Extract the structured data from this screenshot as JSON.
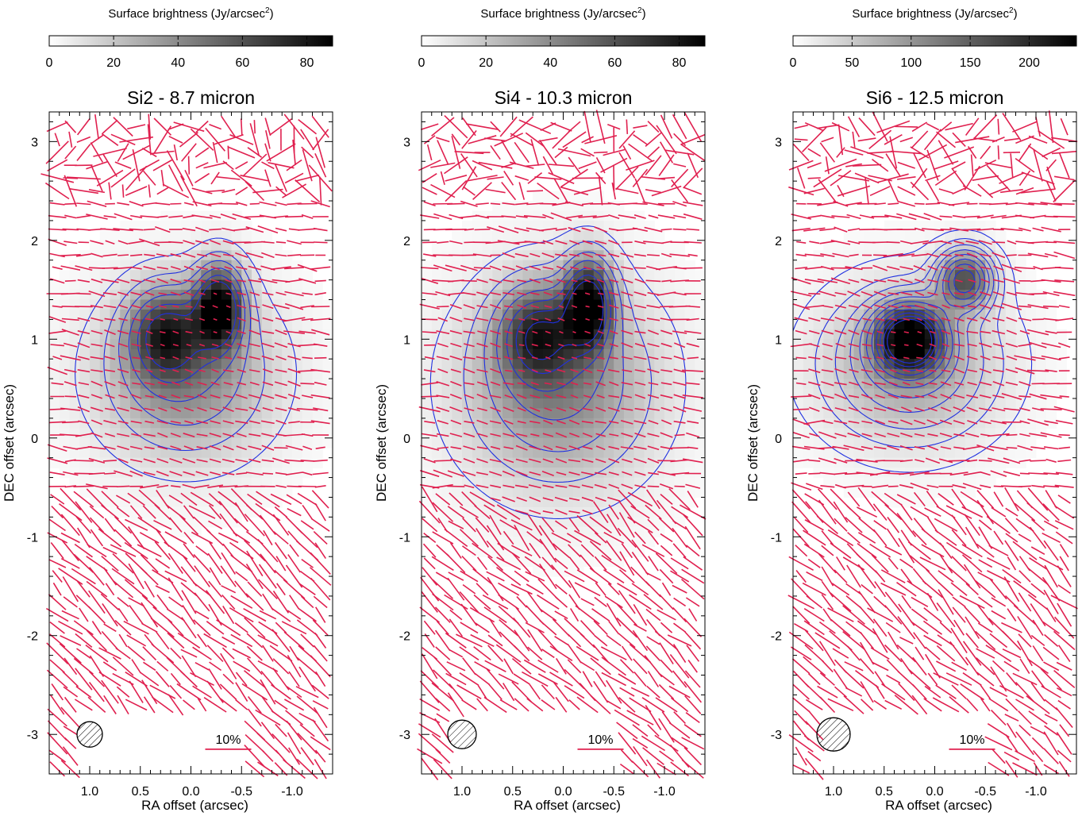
{
  "chart_data": [
    {
      "type": "heatmap",
      "title": "Si2 - 8.7 micron",
      "xlabel": "RA offset (arcsec)",
      "ylabel": "DEC offset (arcsec)",
      "xlim": [
        1.4,
        -1.4
      ],
      "ylim": [
        -3.4,
        3.3
      ],
      "xticks": [
        "-1.0",
        "-0.5",
        "0.0",
        "0.5",
        "1.0"
      ],
      "xtick_values": [
        -1.0,
        -0.5,
        0.0,
        0.5,
        1.0
      ],
      "yticks": [
        "3",
        "2",
        "1",
        "0",
        "-1",
        "-2",
        "-3"
      ],
      "ytick_values": [
        3,
        2,
        1,
        0,
        -1,
        -2,
        -3
      ],
      "colorbar": {
        "label_main": "Surface brightness (Jy/arcsec",
        "label_sup": "2",
        "label_close": ")",
        "max": 88,
        "ticks": [
          "0",
          "20",
          "40",
          "60",
          "80"
        ],
        "tick_values": [
          0,
          20,
          40,
          60,
          80
        ]
      },
      "sources": [
        {
          "ra": -0.28,
          "dec": 1.32,
          "peak": 88,
          "sx": 0.16,
          "sy": 0.28
        },
        {
          "ra": 0.25,
          "dec": 1.05,
          "peak": 58,
          "sx": 0.24,
          "sy": 0.3
        },
        {
          "ra": 0.05,
          "dec": 0.65,
          "peak": 38,
          "sx": 0.55,
          "sy": 0.55
        }
      ],
      "contour_levels": [
        0.06,
        0.16,
        0.28,
        0.42,
        0.58,
        0.74
      ],
      "scale_bar_label": "10%",
      "beam": "hatched circle, bottom-left"
    },
    {
      "type": "heatmap",
      "title": "Si4 - 10.3 micron",
      "xlabel": "RA offset (arcsec)",
      "ylabel": "DEC offset (arcsec)",
      "xlim": [
        1.4,
        -1.4
      ],
      "ylim": [
        -3.4,
        3.3
      ],
      "xticks": [
        "-1.0",
        "-0.5",
        "0.0",
        "0.5",
        "1.0"
      ],
      "xtick_values": [
        -1.0,
        -0.5,
        0.0,
        0.5,
        1.0
      ],
      "yticks": [
        "3",
        "2",
        "1",
        "0",
        "-1",
        "-2",
        "-3"
      ],
      "ytick_values": [
        3,
        2,
        1,
        0,
        -1,
        -2,
        -3
      ],
      "colorbar": {
        "label_main": "Surface brightness (Jy/arcsec",
        "label_sup": "2",
        "label_close": ")",
        "max": 88,
        "ticks": [
          "0",
          "20",
          "40",
          "60",
          "80"
        ],
        "tick_values": [
          0,
          20,
          40,
          60,
          80
        ]
      },
      "sources": [
        {
          "ra": -0.25,
          "dec": 1.35,
          "peak": 88,
          "sx": 0.16,
          "sy": 0.3
        },
        {
          "ra": 0.25,
          "dec": 1.05,
          "peak": 55,
          "sx": 0.26,
          "sy": 0.32
        },
        {
          "ra": 0.05,
          "dec": 0.55,
          "peak": 40,
          "sx": 0.6,
          "sy": 0.65
        }
      ],
      "contour_levels": [
        0.05,
        0.14,
        0.26,
        0.4,
        0.56,
        0.72,
        0.86
      ],
      "scale_bar_label": "10%",
      "beam": "hatched circle, bottom-left"
    },
    {
      "type": "heatmap",
      "title": "Si6 - 12.5 micron",
      "xlabel": "RA offset (arcsec)",
      "ylabel": "DEC offset (arcsec)",
      "xlim": [
        1.4,
        -1.4
      ],
      "ylim": [
        -3.4,
        3.3
      ],
      "xticks": [
        "-1.0",
        "-0.5",
        "0.0",
        "0.5",
        "1.0"
      ],
      "xtick_values": [
        -1.0,
        -0.5,
        0.0,
        0.5,
        1.0
      ],
      "yticks": [
        "3",
        "2",
        "1",
        "0",
        "-1",
        "-2",
        "-3"
      ],
      "ytick_values": [
        3,
        2,
        1,
        0,
        -1,
        -2,
        -3
      ],
      "colorbar": {
        "label_main": "Surface brightness (Jy/arcsec",
        "label_sup": "2",
        "label_close": ")",
        "max": 240,
        "ticks": [
          "0",
          "50",
          "100",
          "150",
          "200"
        ],
        "tick_values": [
          0,
          50,
          100,
          150,
          200
        ]
      },
      "sources": [
        {
          "ra": 0.25,
          "dec": 1.0,
          "peak": 240,
          "sx": 0.22,
          "sy": 0.22
        },
        {
          "ra": -0.3,
          "dec": 1.6,
          "peak": 150,
          "sx": 0.18,
          "sy": 0.2
        },
        {
          "ra": 0.25,
          "dec": 0.75,
          "peak": 80,
          "sx": 0.55,
          "sy": 0.5
        }
      ],
      "contour_levels": [
        0.03,
        0.08,
        0.14,
        0.21,
        0.29,
        0.38,
        0.48,
        0.58,
        0.68,
        0.78,
        0.88
      ],
      "scale_bar_label": "10%",
      "beam": "hatched circle, bottom-left"
    }
  ],
  "colors": {
    "vectors": "#e0204f",
    "contours": "#2030e0",
    "axes": "#000000"
  }
}
